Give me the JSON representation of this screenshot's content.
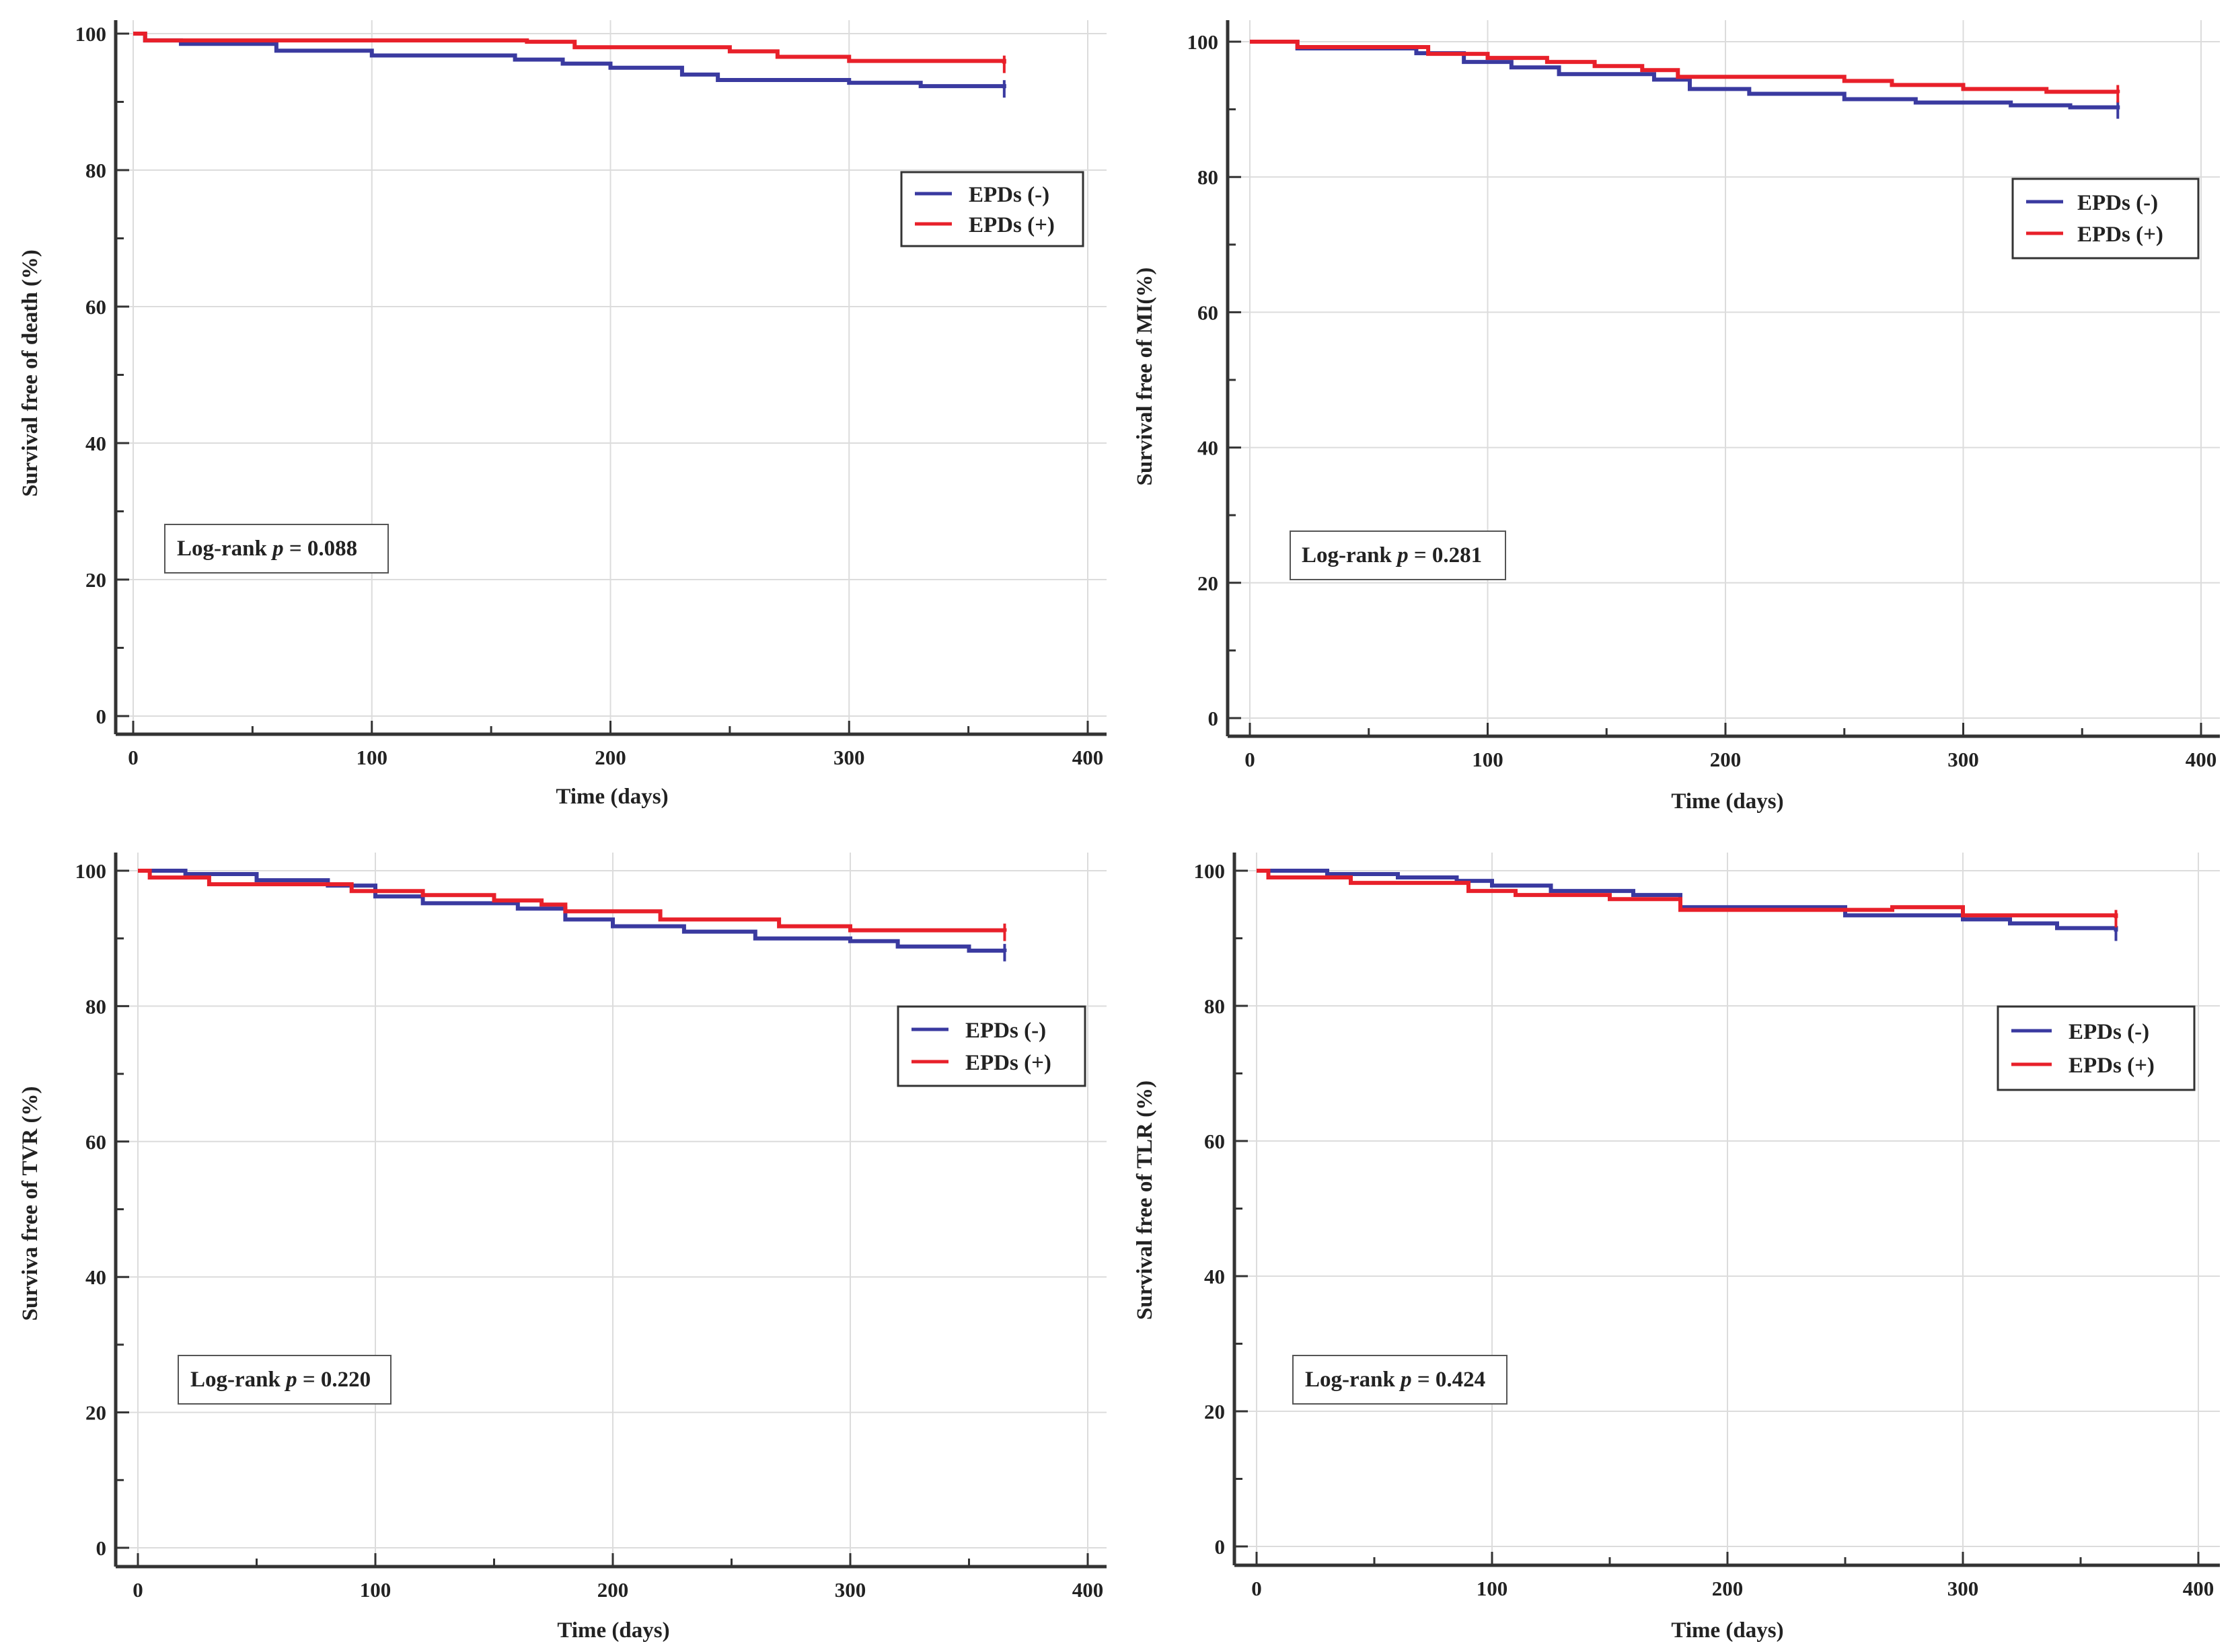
{
  "colors": {
    "neg": "#3a3aa0",
    "pos": "#e8202a",
    "axis": "#333333",
    "grid": "#dcdcdc"
  },
  "chart_data": [
    {
      "type": "line",
      "step": true,
      "xlabel": "Time (days)",
      "ylabel": "Survival free of death (%)",
      "xlim": [
        0,
        400
      ],
      "ylim": [
        0,
        100
      ],
      "xticks": [
        0,
        100,
        200,
        300,
        400
      ],
      "yticks": [
        0,
        20,
        40,
        60,
        80,
        100
      ],
      "grid": true,
      "legend_position": "upper-right",
      "annotation": {
        "prefix": "Log-rank ",
        "p": "p",
        "suffix": " = 0.088"
      },
      "series": [
        {
          "name": "EPDs (-)",
          "color_key": "neg",
          "x": [
            0,
            5,
            20,
            60,
            100,
            160,
            180,
            200,
            230,
            245,
            300,
            330,
            365
          ],
          "y": [
            100,
            99,
            98.5,
            97.5,
            96.8,
            96.2,
            95.6,
            95,
            94,
            93.2,
            92.8,
            92.3,
            92
          ]
        },
        {
          "name": "EPDs (+)",
          "color_key": "pos",
          "x": [
            0,
            5,
            165,
            185,
            250,
            270,
            300,
            365
          ],
          "y": [
            100,
            99,
            98.8,
            98,
            97.4,
            96.6,
            96,
            95.6
          ]
        }
      ]
    },
    {
      "type": "line",
      "step": true,
      "xlabel": "Time (days)",
      "ylabel": "Survival free of MI(%)",
      "xlim": [
        0,
        400
      ],
      "ylim": [
        0,
        100
      ],
      "xticks": [
        0,
        100,
        200,
        300,
        400
      ],
      "yticks": [
        0,
        20,
        40,
        60,
        80,
        100
      ],
      "grid": true,
      "legend_position": "upper-right",
      "annotation": {
        "prefix": "Log-rank ",
        "p": "p",
        "suffix": " = 0.281"
      },
      "series": [
        {
          "name": "EPDs (-)",
          "color_key": "neg",
          "x": [
            0,
            20,
            70,
            90,
            110,
            130,
            170,
            185,
            210,
            250,
            280,
            320,
            345,
            365
          ],
          "y": [
            100,
            99,
            98.3,
            97,
            96.2,
            95.2,
            94.4,
            93,
            92.3,
            91.5,
            91,
            90.6,
            90.3,
            90
          ]
        },
        {
          "name": "EPDs (+)",
          "color_key": "pos",
          "x": [
            0,
            20,
            75,
            100,
            125,
            145,
            165,
            180,
            250,
            270,
            300,
            335,
            365
          ],
          "y": [
            100,
            99.2,
            98.2,
            97.6,
            97,
            96.4,
            95.8,
            94.8,
            94.2,
            93.6,
            93,
            92.6,
            92.4
          ]
        }
      ]
    },
    {
      "type": "line",
      "step": true,
      "xlabel": "Time (days)",
      "ylabel": "Surviva free of TVR (%)",
      "xlim": [
        0,
        400
      ],
      "ylim": [
        0,
        100
      ],
      "xticks": [
        0,
        100,
        200,
        300,
        400
      ],
      "yticks": [
        0,
        20,
        40,
        60,
        80,
        100
      ],
      "grid": true,
      "legend_position": "upper-right",
      "annotation": {
        "prefix": "Log-rank ",
        "p": "p",
        "suffix": " = 0.220"
      },
      "series": [
        {
          "name": "EPDs (-)",
          "color_key": "neg",
          "x": [
            0,
            20,
            50,
            80,
            100,
            120,
            160,
            180,
            200,
            230,
            260,
            300,
            320,
            350,
            365
          ],
          "y": [
            100,
            99.5,
            98.6,
            97.8,
            96.2,
            95.2,
            94.4,
            92.8,
            91.8,
            91,
            90,
            89.6,
            88.8,
            88.2,
            88
          ]
        },
        {
          "name": "EPDs (+)",
          "color_key": "pos",
          "x": [
            0,
            5,
            30,
            90,
            120,
            150,
            170,
            180,
            220,
            270,
            300,
            365
          ],
          "y": [
            100,
            99,
            98,
            97,
            96.4,
            95.6,
            95,
            94,
            92.8,
            91.8,
            91.2,
            91
          ]
        }
      ]
    },
    {
      "type": "line",
      "step": true,
      "xlabel": "Time (days)",
      "ylabel": "Survival free of TLR (%)",
      "xlim": [
        0,
        400
      ],
      "ylim": [
        0,
        100
      ],
      "xticks": [
        0,
        100,
        200,
        300,
        400
      ],
      "yticks": [
        0,
        20,
        40,
        60,
        80,
        100
      ],
      "grid": true,
      "legend_position": "upper-right",
      "annotation": {
        "prefix": "Log-rank ",
        "p": "p",
        "suffix": " = 0.424"
      },
      "series": [
        {
          "name": "EPDs (-)",
          "color_key": "neg",
          "x": [
            0,
            30,
            60,
            85,
            100,
            125,
            160,
            180,
            250,
            300,
            320,
            340,
            365
          ],
          "y": [
            100,
            99.5,
            99,
            98.5,
            97.8,
            97,
            96.4,
            94.6,
            93.4,
            92.8,
            92.2,
            91.5,
            91
          ]
        },
        {
          "name": "EPDs (+)",
          "color_key": "pos",
          "x": [
            0,
            5,
            40,
            90,
            110,
            150,
            180,
            270,
            300,
            365
          ],
          "y": [
            100,
            99,
            98.2,
            97,
            96.4,
            95.8,
            94.2,
            94.6,
            93.4,
            93
          ]
        }
      ]
    }
  ]
}
